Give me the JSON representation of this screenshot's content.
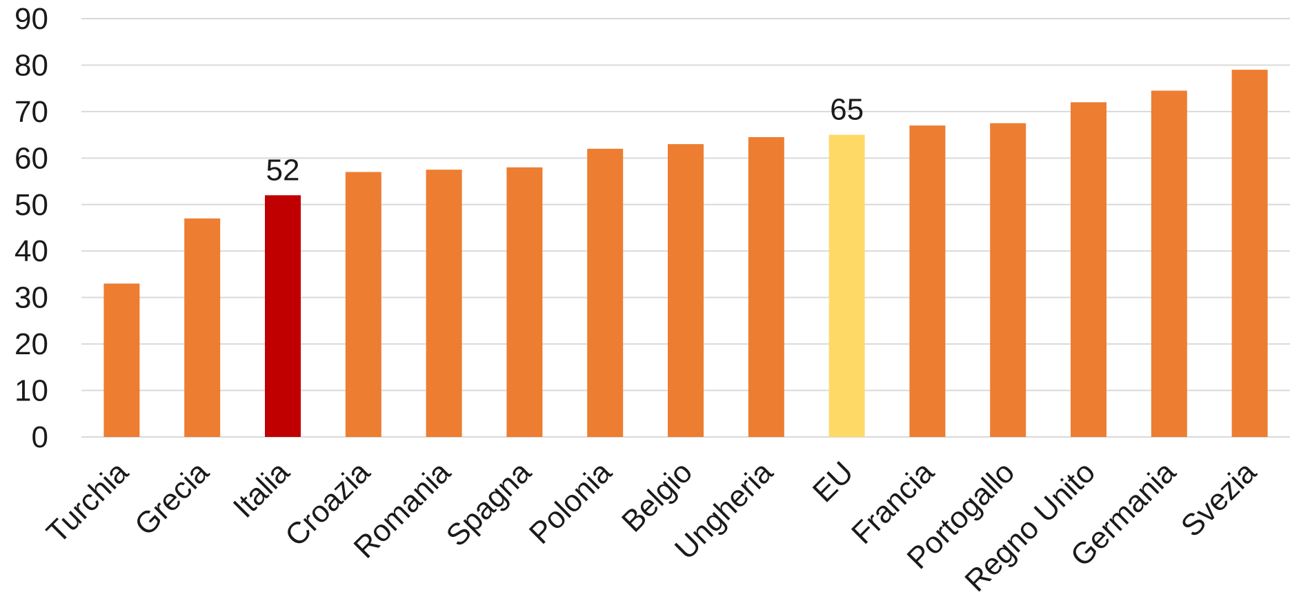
{
  "chart_data": {
    "type": "bar",
    "title": "",
    "xlabel": "",
    "ylabel": "",
    "ylim": [
      0,
      90
    ],
    "yticks": [
      0,
      10,
      20,
      30,
      40,
      50,
      60,
      70,
      80,
      90
    ],
    "grid": true,
    "legend": "none",
    "categories": [
      "Turchia",
      "Grecia",
      "Italia",
      "Croazia",
      "Romania",
      "Spagna",
      "Polonia",
      "Belgio",
      "Ungheria",
      "EU",
      "Francia",
      "Portogallo",
      "Regno Unito",
      "Germania",
      "Svezia"
    ],
    "values": [
      33,
      47,
      52,
      57,
      57.5,
      58,
      62,
      63,
      64.5,
      65,
      67,
      67.5,
      72,
      74.5,
      79
    ],
    "data_labels": [
      {
        "category": "Italia",
        "text": "52"
      },
      {
        "category": "EU",
        "text": "65"
      }
    ],
    "colors": {
      "default": "#ED7D31",
      "highlight": {
        "Italia": "#C00000",
        "EU": "#FFD966"
      },
      "grid": "#D9D9D9"
    }
  }
}
